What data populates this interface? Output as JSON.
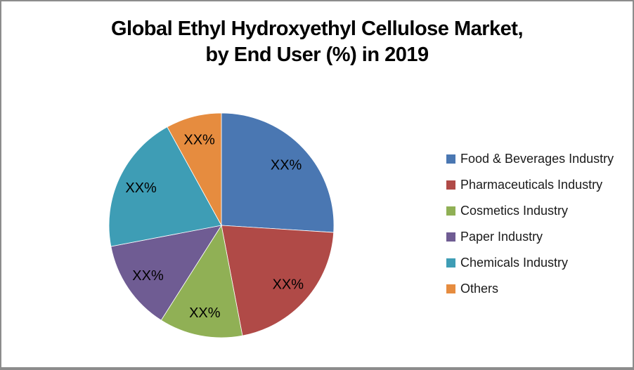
{
  "chart_data": {
    "type": "pie",
    "title": "Global Ethyl Hydroxyethyl Cellulose Market, by End User (%) in 2019",
    "title_lines": [
      "Global Ethyl Hydroxyethyl Cellulose Market,",
      "by End User (%) in 2019"
    ],
    "start_angle_deg": 0,
    "direction": "clockwise",
    "legend_position": "right",
    "data_label_text": "XX%",
    "slices": [
      {
        "name": "Food & Beverages Industry",
        "value_pct": 26,
        "label": "XX%",
        "color": "#4A77B2"
      },
      {
        "name": "Pharmaceuticals Industry",
        "value_pct": 21,
        "label": "XX%",
        "color": "#B04A47"
      },
      {
        "name": "Cosmetics Industry",
        "value_pct": 12,
        "label": "XX%",
        "color": "#90B055"
      },
      {
        "name": "Paper Industry",
        "value_pct": 13,
        "label": "XX%",
        "color": "#6F5C93"
      },
      {
        "name": "Chemicals Industry",
        "value_pct": 20,
        "label": "XX%",
        "color": "#3E9DB5"
      },
      {
        "name": "Others",
        "value_pct": 8,
        "label": "XX%",
        "color": "#E68C3F"
      }
    ]
  },
  "colors": {
    "frame_border": "#8C8C8C",
    "background": "#FFFFFF",
    "title_text": "#000000",
    "slice_border": "#FFFFFF"
  }
}
